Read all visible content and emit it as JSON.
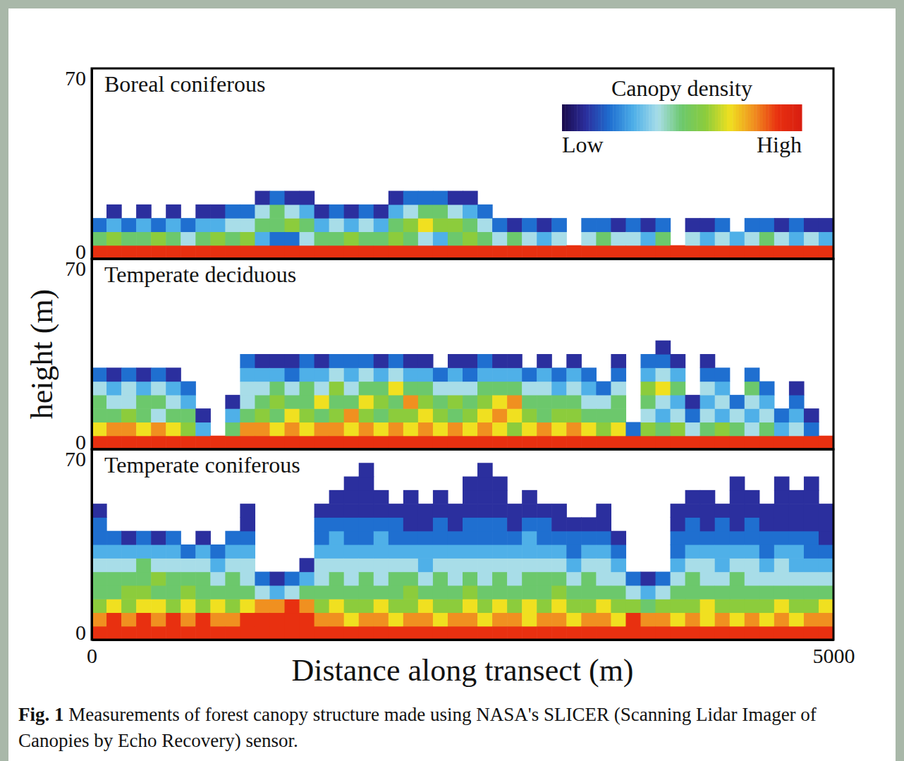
{
  "figure": {
    "y_label": "height (m)",
    "x_label": "Distance along transect (m)",
    "caption_label": "Fig. 1",
    "caption": "Measurements of forest canopy structure made using NASA's SLICER (Scanning Lidar Imager of Canopies by Echo Recovery) sensor.",
    "colorbar": {
      "title": "Canopy density",
      "range": [
        0,
        10
      ],
      "ticks": [
        {
          "value": 0,
          "label": "Low"
        },
        {
          "value": 10,
          "label": "High"
        }
      ]
    }
  },
  "chart_data": [
    {
      "type": "heatmap",
      "title": "Boreal coniferous",
      "xlim": [
        0,
        5000
      ],
      "ylim": [
        0,
        70
      ],
      "yticks": [
        0,
        70
      ],
      "tick_labels": "y",
      "x": [
        50,
        150,
        250,
        350,
        450,
        550,
        650,
        750,
        850,
        950,
        1050,
        1150,
        1250,
        1350,
        1450,
        1550,
        1650,
        1750,
        1850,
        1950,
        2050,
        2150,
        2250,
        2350,
        2450,
        2550,
        2650,
        2750,
        2850,
        2950,
        3050,
        3150,
        3250,
        3350,
        3450,
        3550,
        3650,
        3750,
        3850,
        3950,
        4050,
        4150,
        4250,
        4350,
        4450,
        4550,
        4650,
        4750,
        4850,
        4950
      ],
      "y": [
        2.5,
        7.5,
        12.5,
        17.5,
        22.5,
        27.5,
        32.5,
        37.5,
        42.5,
        47.5,
        52.5,
        57.5,
        62.5,
        67.5
      ],
      "cells": [
        [
          9,
          5,
          2
        ],
        [
          9,
          6,
          3,
          1
        ],
        [
          9,
          5,
          2
        ],
        [
          9,
          5,
          3,
          1
        ],
        [
          9,
          6,
          2
        ],
        [
          9,
          5,
          3,
          1
        ],
        [
          9,
          4,
          2
        ],
        [
          9,
          5,
          3,
          1
        ],
        [
          9,
          6,
          3,
          1
        ],
        [
          9,
          5,
          4,
          2
        ],
        [
          9,
          6,
          4,
          2
        ],
        [
          9,
          3,
          5,
          4,
          1
        ],
        [
          9,
          2,
          5,
          5,
          2
        ],
        [
          9,
          2,
          6,
          4,
          1
        ],
        [
          9,
          4,
          5,
          3,
          1
        ],
        [
          9,
          5,
          3,
          1
        ],
        [
          9,
          5,
          4,
          2
        ],
        [
          9,
          6,
          3,
          1
        ],
        [
          9,
          5,
          4,
          2
        ],
        [
          9,
          5,
          3,
          1
        ],
        [
          9,
          6,
          5,
          3,
          1
        ],
        [
          9,
          5,
          6,
          4,
          2
        ],
        [
          9,
          4,
          7,
          5,
          2
        ],
        [
          9,
          3,
          6,
          5,
          2
        ],
        [
          9,
          5,
          6,
          4,
          1
        ],
        [
          9,
          6,
          5,
          3,
          1
        ],
        [
          9,
          5,
          4,
          2
        ],
        [
          9,
          4,
          2
        ],
        [
          9,
          5,
          1
        ],
        [
          9,
          4,
          2
        ],
        [
          9,
          3,
          1
        ],
        [
          9,
          4,
          2
        ],
        [
          9
        ],
        [
          9,
          4,
          2
        ],
        [
          9,
          5,
          2
        ],
        [
          9,
          4,
          1
        ],
        [
          9,
          4,
          2
        ],
        [
          9,
          3,
          1
        ],
        [
          9,
          5,
          2
        ],
        [
          9
        ],
        [
          9,
          4,
          1
        ],
        [
          9,
          3,
          1
        ],
        [
          9,
          4,
          2
        ],
        [
          9,
          3
        ],
        [
          9,
          4,
          2
        ],
        [
          9,
          5,
          2
        ],
        [
          9,
          4,
          1
        ],
        [
          9,
          3,
          2
        ],
        [
          9,
          4,
          1
        ],
        [
          9,
          3,
          1
        ]
      ]
    },
    {
      "type": "heatmap",
      "title": "Temperate deciduous",
      "xlim": [
        0,
        5000
      ],
      "ylim": [
        0,
        70
      ],
      "yticks": [
        0,
        70
      ],
      "tick_labels": "y",
      "x": [
        50,
        150,
        250,
        350,
        450,
        550,
        650,
        750,
        850,
        950,
        1050,
        1150,
        1250,
        1350,
        1450,
        1550,
        1650,
        1750,
        1850,
        1950,
        2050,
        2150,
        2250,
        2350,
        2450,
        2550,
        2650,
        2750,
        2850,
        2950,
        3050,
        3150,
        3250,
        3350,
        3450,
        3550,
        3650,
        3750,
        3850,
        3950,
        4050,
        4150,
        4250,
        4350,
        4450,
        4550,
        4650,
        4750,
        4850,
        4950
      ],
      "y": [
        2.5,
        7.5,
        12.5,
        17.5,
        22.5,
        27.5,
        32.5,
        37.5,
        42.5,
        47.5,
        52.5,
        57.5,
        62.5,
        67.5
      ],
      "cells": [
        [
          9,
          7,
          5,
          5,
          4,
          2
        ],
        [
          9,
          8,
          5,
          4,
          3,
          1
        ],
        [
          9,
          8,
          6,
          4,
          4,
          2
        ],
        [
          9,
          7,
          5,
          5,
          3,
          1
        ],
        [
          9,
          8,
          4,
          5,
          4,
          2
        ],
        [
          9,
          7,
          5,
          4,
          3,
          1
        ],
        [
          9,
          6,
          5,
          3,
          2
        ],
        [
          9,
          3,
          1
        ],
        [
          9
        ],
        [
          9,
          5,
          3,
          1
        ],
        [
          9,
          8,
          5,
          4,
          4,
          3,
          2
        ],
        [
          9,
          8,
          6,
          5,
          4,
          3,
          1
        ],
        [
          9,
          7,
          5,
          6,
          5,
          3,
          1
        ],
        [
          9,
          8,
          7,
          5,
          4,
          2,
          1
        ],
        [
          9,
          7,
          6,
          5,
          5,
          3,
          2
        ],
        [
          9,
          8,
          5,
          7,
          4,
          3,
          1
        ],
        [
          9,
          8,
          6,
          5,
          6,
          4,
          2
        ],
        [
          9,
          7,
          8,
          5,
          4,
          3,
          2
        ],
        [
          9,
          8,
          6,
          7,
          5,
          4,
          2
        ],
        [
          9,
          7,
          5,
          6,
          5,
          3,
          1
        ],
        [
          9,
          8,
          6,
          5,
          7,
          4,
          2
        ],
        [
          9,
          7,
          6,
          8,
          5,
          3,
          1
        ],
        [
          9,
          8,
          7,
          6,
          5,
          3,
          1
        ],
        [
          9,
          7,
          6,
          5,
          4,
          2
        ],
        [
          9,
          8,
          5,
          6,
          4,
          3,
          1
        ],
        [
          9,
          7,
          6,
          5,
          4,
          2,
          1
        ],
        [
          9,
          8,
          7,
          6,
          5,
          3,
          2
        ],
        [
          9,
          7,
          8,
          7,
          5,
          3,
          1
        ],
        [
          9,
          6,
          7,
          8,
          5,
          3,
          1
        ],
        [
          9,
          7,
          6,
          5,
          4,
          2
        ],
        [
          9,
          8,
          5,
          5,
          4,
          3,
          1
        ],
        [
          9,
          7,
          6,
          5,
          3,
          2
        ],
        [
          9,
          8,
          6,
          5,
          4,
          3,
          1
        ],
        [
          9,
          7,
          5,
          4,
          3,
          2
        ],
        [
          9,
          6,
          5,
          4,
          2
        ],
        [
          9,
          7,
          5,
          5,
          4,
          2,
          1
        ],
        [
          9,
          2
        ],
        [
          9,
          6,
          4,
          5,
          6,
          3,
          2
        ],
        [
          9,
          5,
          3,
          4,
          7,
          4,
          2,
          1
        ],
        [
          9,
          6,
          4,
          3,
          5,
          3,
          1
        ],
        [
          9,
          4,
          2,
          1
        ],
        [
          9,
          5,
          4,
          3,
          4,
          2,
          1
        ],
        [
          9,
          6,
          3,
          4,
          3,
          2
        ],
        [
          9,
          5,
          4,
          2
        ],
        [
          9,
          4,
          3,
          4,
          5,
          2
        ],
        [
          9,
          5,
          4,
          3,
          2
        ],
        [
          9,
          3,
          2
        ],
        [
          9,
          4,
          3,
          2,
          1
        ],
        [
          9,
          2,
          1
        ],
        [
          9
        ]
      ]
    },
    {
      "type": "heatmap",
      "title": "Temperate coniferous",
      "xlim": [
        0,
        5000
      ],
      "ylim": [
        0,
        70
      ],
      "xticks": [
        0,
        5000
      ],
      "yticks": [
        0,
        70
      ],
      "x": [
        50,
        150,
        250,
        350,
        450,
        550,
        650,
        750,
        850,
        950,
        1050,
        1150,
        1250,
        1350,
        1450,
        1550,
        1650,
        1750,
        1850,
        1950,
        2050,
        2150,
        2250,
        2350,
        2450,
        2550,
        2650,
        2750,
        2850,
        2950,
        3050,
        3150,
        3250,
        3350,
        3450,
        3550,
        3650,
        3750,
        3850,
        3950,
        4050,
        4150,
        4250,
        4350,
        4450,
        4550,
        4650,
        4750,
        4850,
        4950
      ],
      "y": [
        2.5,
        7.5,
        12.5,
        17.5,
        22.5,
        27.5,
        32.5,
        37.5,
        42.5,
        47.5,
        52.5,
        57.5,
        62.5,
        67.5
      ],
      "cells": [
        [
          9,
          8,
          6,
          5,
          5,
          4,
          3,
          2,
          2,
          1
        ],
        [
          9,
          9,
          7,
          5,
          5,
          4,
          3,
          2
        ],
        [
          9,
          8,
          6,
          6,
          5,
          4,
          3,
          1
        ],
        [
          9,
          9,
          7,
          6,
          5,
          5,
          3,
          2
        ],
        [
          9,
          8,
          7,
          5,
          6,
          4,
          3,
          1
        ],
        [
          9,
          9,
          6,
          5,
          5,
          4,
          3,
          2
        ],
        [
          9,
          8,
          7,
          6,
          5,
          4,
          2
        ],
        [
          9,
          9,
          6,
          5,
          5,
          4,
          3,
          1
        ],
        [
          9,
          8,
          7,
          5,
          4,
          3,
          2
        ],
        [
          9,
          8,
          6,
          5,
          5,
          4,
          3,
          2
        ],
        [
          9,
          9,
          7,
          5,
          4,
          4,
          3,
          2,
          1,
          1
        ],
        [
          9,
          9,
          8,
          4,
          2
        ],
        [
          9,
          9,
          8,
          3,
          1
        ],
        [
          9,
          9,
          9,
          4,
          2
        ],
        [
          9,
          9,
          8,
          5,
          3,
          1
        ],
        [
          9,
          8,
          6,
          5,
          4,
          4,
          3,
          2,
          2,
          1
        ],
        [
          9,
          8,
          7,
          5,
          5,
          4,
          3,
          3,
          2,
          1,
          1
        ],
        [
          9,
          7,
          6,
          5,
          4,
          4,
          3,
          2,
          2,
          1,
          1,
          1
        ],
        [
          9,
          8,
          6,
          5,
          5,
          4,
          3,
          2,
          2,
          1,
          1,
          1,
          1
        ],
        [
          9,
          8,
          7,
          5,
          4,
          4,
          3,
          3,
          2,
          1,
          1
        ],
        [
          9,
          7,
          6,
          5,
          5,
          4,
          3,
          2,
          2,
          1
        ],
        [
          9,
          8,
          6,
          6,
          5,
          4,
          3,
          2,
          1,
          1,
          1
        ],
        [
          9,
          8,
          7,
          5,
          4,
          3,
          3,
          2,
          1,
          1
        ],
        [
          9,
          7,
          6,
          5,
          5,
          4,
          3,
          2,
          2,
          1,
          1
        ],
        [
          9,
          8,
          6,
          5,
          4,
          4,
          3,
          2,
          1,
          1
        ],
        [
          9,
          8,
          7,
          6,
          5,
          4,
          3,
          2,
          2,
          1,
          1,
          1
        ],
        [
          9,
          7,
          6,
          5,
          4,
          4,
          3,
          2,
          2,
          1,
          1,
          1,
          1
        ],
        [
          9,
          8,
          7,
          5,
          5,
          4,
          3,
          2,
          2,
          1,
          1,
          1
        ],
        [
          9,
          8,
          6,
          5,
          4,
          4,
          3,
          2,
          1,
          1
        ],
        [
          9,
          7,
          7,
          5,
          5,
          4,
          3,
          3,
          2,
          1,
          1
        ],
        [
          9,
          8,
          6,
          5,
          5,
          4,
          3,
          2,
          2,
          1
        ],
        [
          9,
          8,
          7,
          6,
          5,
          4,
          3,
          2,
          1,
          1
        ],
        [
          9,
          7,
          6,
          5,
          4,
          3,
          2,
          2,
          1
        ],
        [
          9,
          8,
          6,
          5,
          5,
          4,
          3,
          2,
          1
        ],
        [
          9,
          8,
          7,
          5,
          4,
          4,
          3,
          2,
          1,
          1
        ],
        [
          9,
          7,
          6,
          5,
          4,
          3,
          2,
          1
        ],
        [
          9,
          9,
          6,
          4,
          2
        ],
        [
          9,
          8,
          5,
          3,
          1
        ],
        [
          9,
          8,
          6,
          4,
          2
        ],
        [
          9,
          7,
          6,
          5,
          4,
          3,
          2,
          2,
          1,
          1
        ],
        [
          9,
          8,
          6,
          5,
          5,
          4,
          3,
          2,
          2,
          1,
          1
        ],
        [
          9,
          7,
          7,
          5,
          4,
          4,
          3,
          2,
          1,
          1,
          1
        ],
        [
          9,
          8,
          6,
          5,
          4,
          3,
          3,
          2,
          2,
          1
        ],
        [
          9,
          7,
          6,
          5,
          5,
          4,
          3,
          2,
          1,
          1,
          1,
          1
        ],
        [
          9,
          8,
          6,
          5,
          4,
          4,
          3,
          2,
          2,
          1,
          1
        ],
        [
          9,
          7,
          6,
          5,
          4,
          3,
          2,
          2,
          1,
          1
        ],
        [
          9,
          8,
          7,
          5,
          4,
          4,
          3,
          2,
          1,
          1,
          1,
          1
        ],
        [
          9,
          7,
          6,
          5,
          4,
          3,
          3,
          2,
          1,
          1,
          1
        ],
        [
          9,
          8,
          6,
          5,
          4,
          3,
          2,
          2,
          1,
          1,
          1,
          1
        ],
        [
          9,
          8,
          7,
          5,
          4,
          3,
          2,
          1,
          1,
          1
        ]
      ]
    }
  ]
}
